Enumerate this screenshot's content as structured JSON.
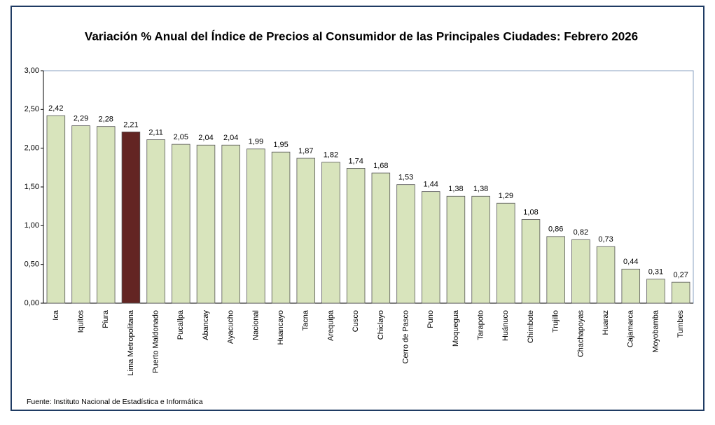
{
  "chart_data": {
    "type": "bar",
    "title": "Variación % Anual del Índice de Precios al Consumidor de las Principales Ciudades: Febrero 2026",
    "categories": [
      "Ica",
      "Iquitos",
      "Piura",
      "Lima Metropolitana",
      "Puerto Maldonado",
      "Pucallpa",
      "Abancay",
      "Ayacucho",
      "Nacional",
      "Huancayo",
      "Tacna",
      "Arequipa",
      "Cusco",
      "Chiclayo",
      "Cerro de Pasco",
      "Puno",
      "Moquegua",
      "Tarapoto",
      "Huánuco",
      "Chimbote",
      "Trujillo",
      "Chachapoyas",
      "Huaraz",
      "Cajamarca",
      "Moyobamba",
      "Tumbes"
    ],
    "values": [
      2.42,
      2.29,
      2.28,
      2.21,
      2.11,
      2.05,
      2.04,
      2.04,
      1.99,
      1.95,
      1.87,
      1.82,
      1.74,
      1.68,
      1.53,
      1.44,
      1.38,
      1.38,
      1.29,
      1.08,
      0.86,
      0.82,
      0.73,
      0.44,
      0.31,
      0.27
    ],
    "value_labels": [
      "2,42",
      "2,29",
      "2,28",
      "2,21",
      "2,11",
      "2,05",
      "2,04",
      "2,04",
      "1,99",
      "1,95",
      "1,87",
      "1,82",
      "1,74",
      "1,68",
      "1,53",
      "1,44",
      "1,38",
      "1,38",
      "1,29",
      "1,08",
      "0,86",
      "0,82",
      "0,73",
      "0,44",
      "0,31",
      "0,27"
    ],
    "colors": [
      "#d8e4bc",
      "#d8e4bc",
      "#d8e4bc",
      "#632523",
      "#d8e4bc",
      "#d8e4bc",
      "#d8e4bc",
      "#d8e4bc",
      "#d8e4bc",
      "#d8e4bc",
      "#d8e4bc",
      "#d8e4bc",
      "#d8e4bc",
      "#d8e4bc",
      "#d8e4bc",
      "#d8e4bc",
      "#d8e4bc",
      "#d8e4bc",
      "#d8e4bc",
      "#d8e4bc",
      "#d8e4bc",
      "#d8e4bc",
      "#d8e4bc",
      "#d8e4bc",
      "#d8e4bc",
      "#d8e4bc"
    ],
    "ylim": [
      0,
      3
    ],
    "yticks": [
      {
        "value": 0,
        "label": "0,00"
      },
      {
        "value": 0.5,
        "label": "0,50"
      },
      {
        "value": 1,
        "label": "1,00"
      },
      {
        "value": 1.5,
        "label": "1,50"
      },
      {
        "value": 2,
        "label": "2,00"
      },
      {
        "value": 2.5,
        "label": "2,50"
      },
      {
        "value": 3,
        "label": "3,00"
      }
    ],
    "grid": false,
    "source": "Fuente: Instituto  Nacional de Estadística  e Informática"
  }
}
